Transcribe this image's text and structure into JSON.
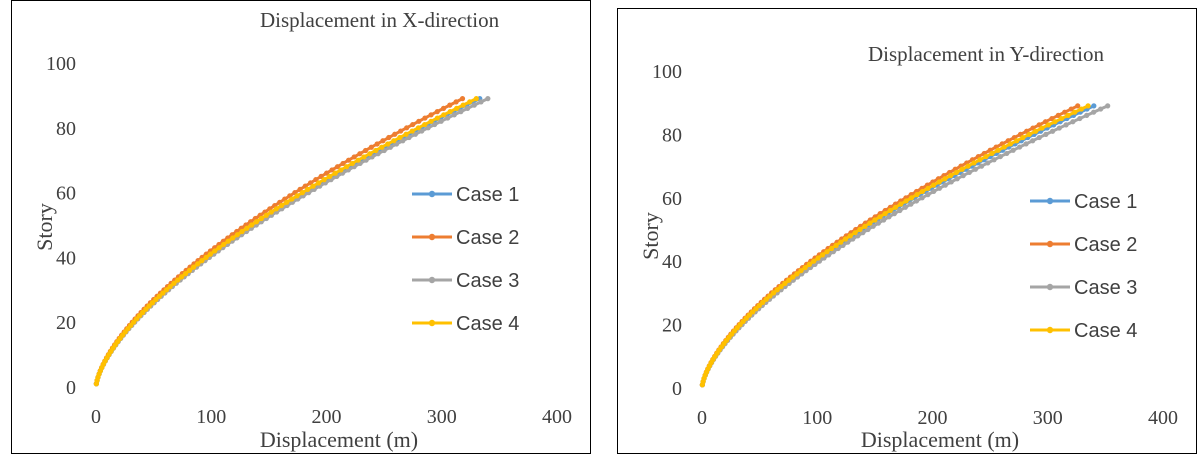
{
  "chart_data": [
    {
      "type": "line",
      "title": "Displacement in X-direction",
      "xlabel": "Displacement (m)",
      "ylabel": "Story",
      "xlim": [
        0,
        400
      ],
      "ylim": [
        0,
        100
      ],
      "x_ticks": [
        "0",
        "100",
        "200",
        "300",
        "400"
      ],
      "y_ticks": [
        "0",
        "20",
        "40",
        "60",
        "80",
        "100"
      ],
      "grid": false,
      "legend_position": "right",
      "series": [
        {
          "name": "Case 1",
          "color": "#5B9BD5",
          "x_top": 333,
          "y_top": 89
        },
        {
          "name": "Case 2",
          "color": "#ED7D31",
          "x_top": 318,
          "y_top": 89
        },
        {
          "name": "Case 3",
          "color": "#A5A5A5",
          "x_top": 340,
          "y_top": 89
        },
        {
          "name": "Case 4",
          "color": "#FFC000",
          "x_top": 330,
          "y_top": 89
        }
      ]
    },
    {
      "type": "line",
      "title": "Displacement in Y-direction",
      "xlabel": "Displacement (m)",
      "ylabel": "Story",
      "xlim": [
        0,
        400
      ],
      "ylim": [
        0,
        100
      ],
      "x_ticks": [
        "0",
        "100",
        "200",
        "300",
        "400"
      ],
      "y_ticks": [
        "0",
        "20",
        "40",
        "60",
        "80",
        "100"
      ],
      "grid": false,
      "legend_position": "right",
      "series": [
        {
          "name": "Case 1",
          "color": "#5B9BD5",
          "x_top": 340,
          "y_top": 89
        },
        {
          "name": "Case 2",
          "color": "#ED7D31",
          "x_top": 326,
          "y_top": 89
        },
        {
          "name": "Case 3",
          "color": "#A5A5A5",
          "x_top": 352,
          "y_top": 89
        },
        {
          "name": "Case 4",
          "color": "#FFC000",
          "x_top": 335,
          "y_top": 89
        }
      ]
    }
  ]
}
